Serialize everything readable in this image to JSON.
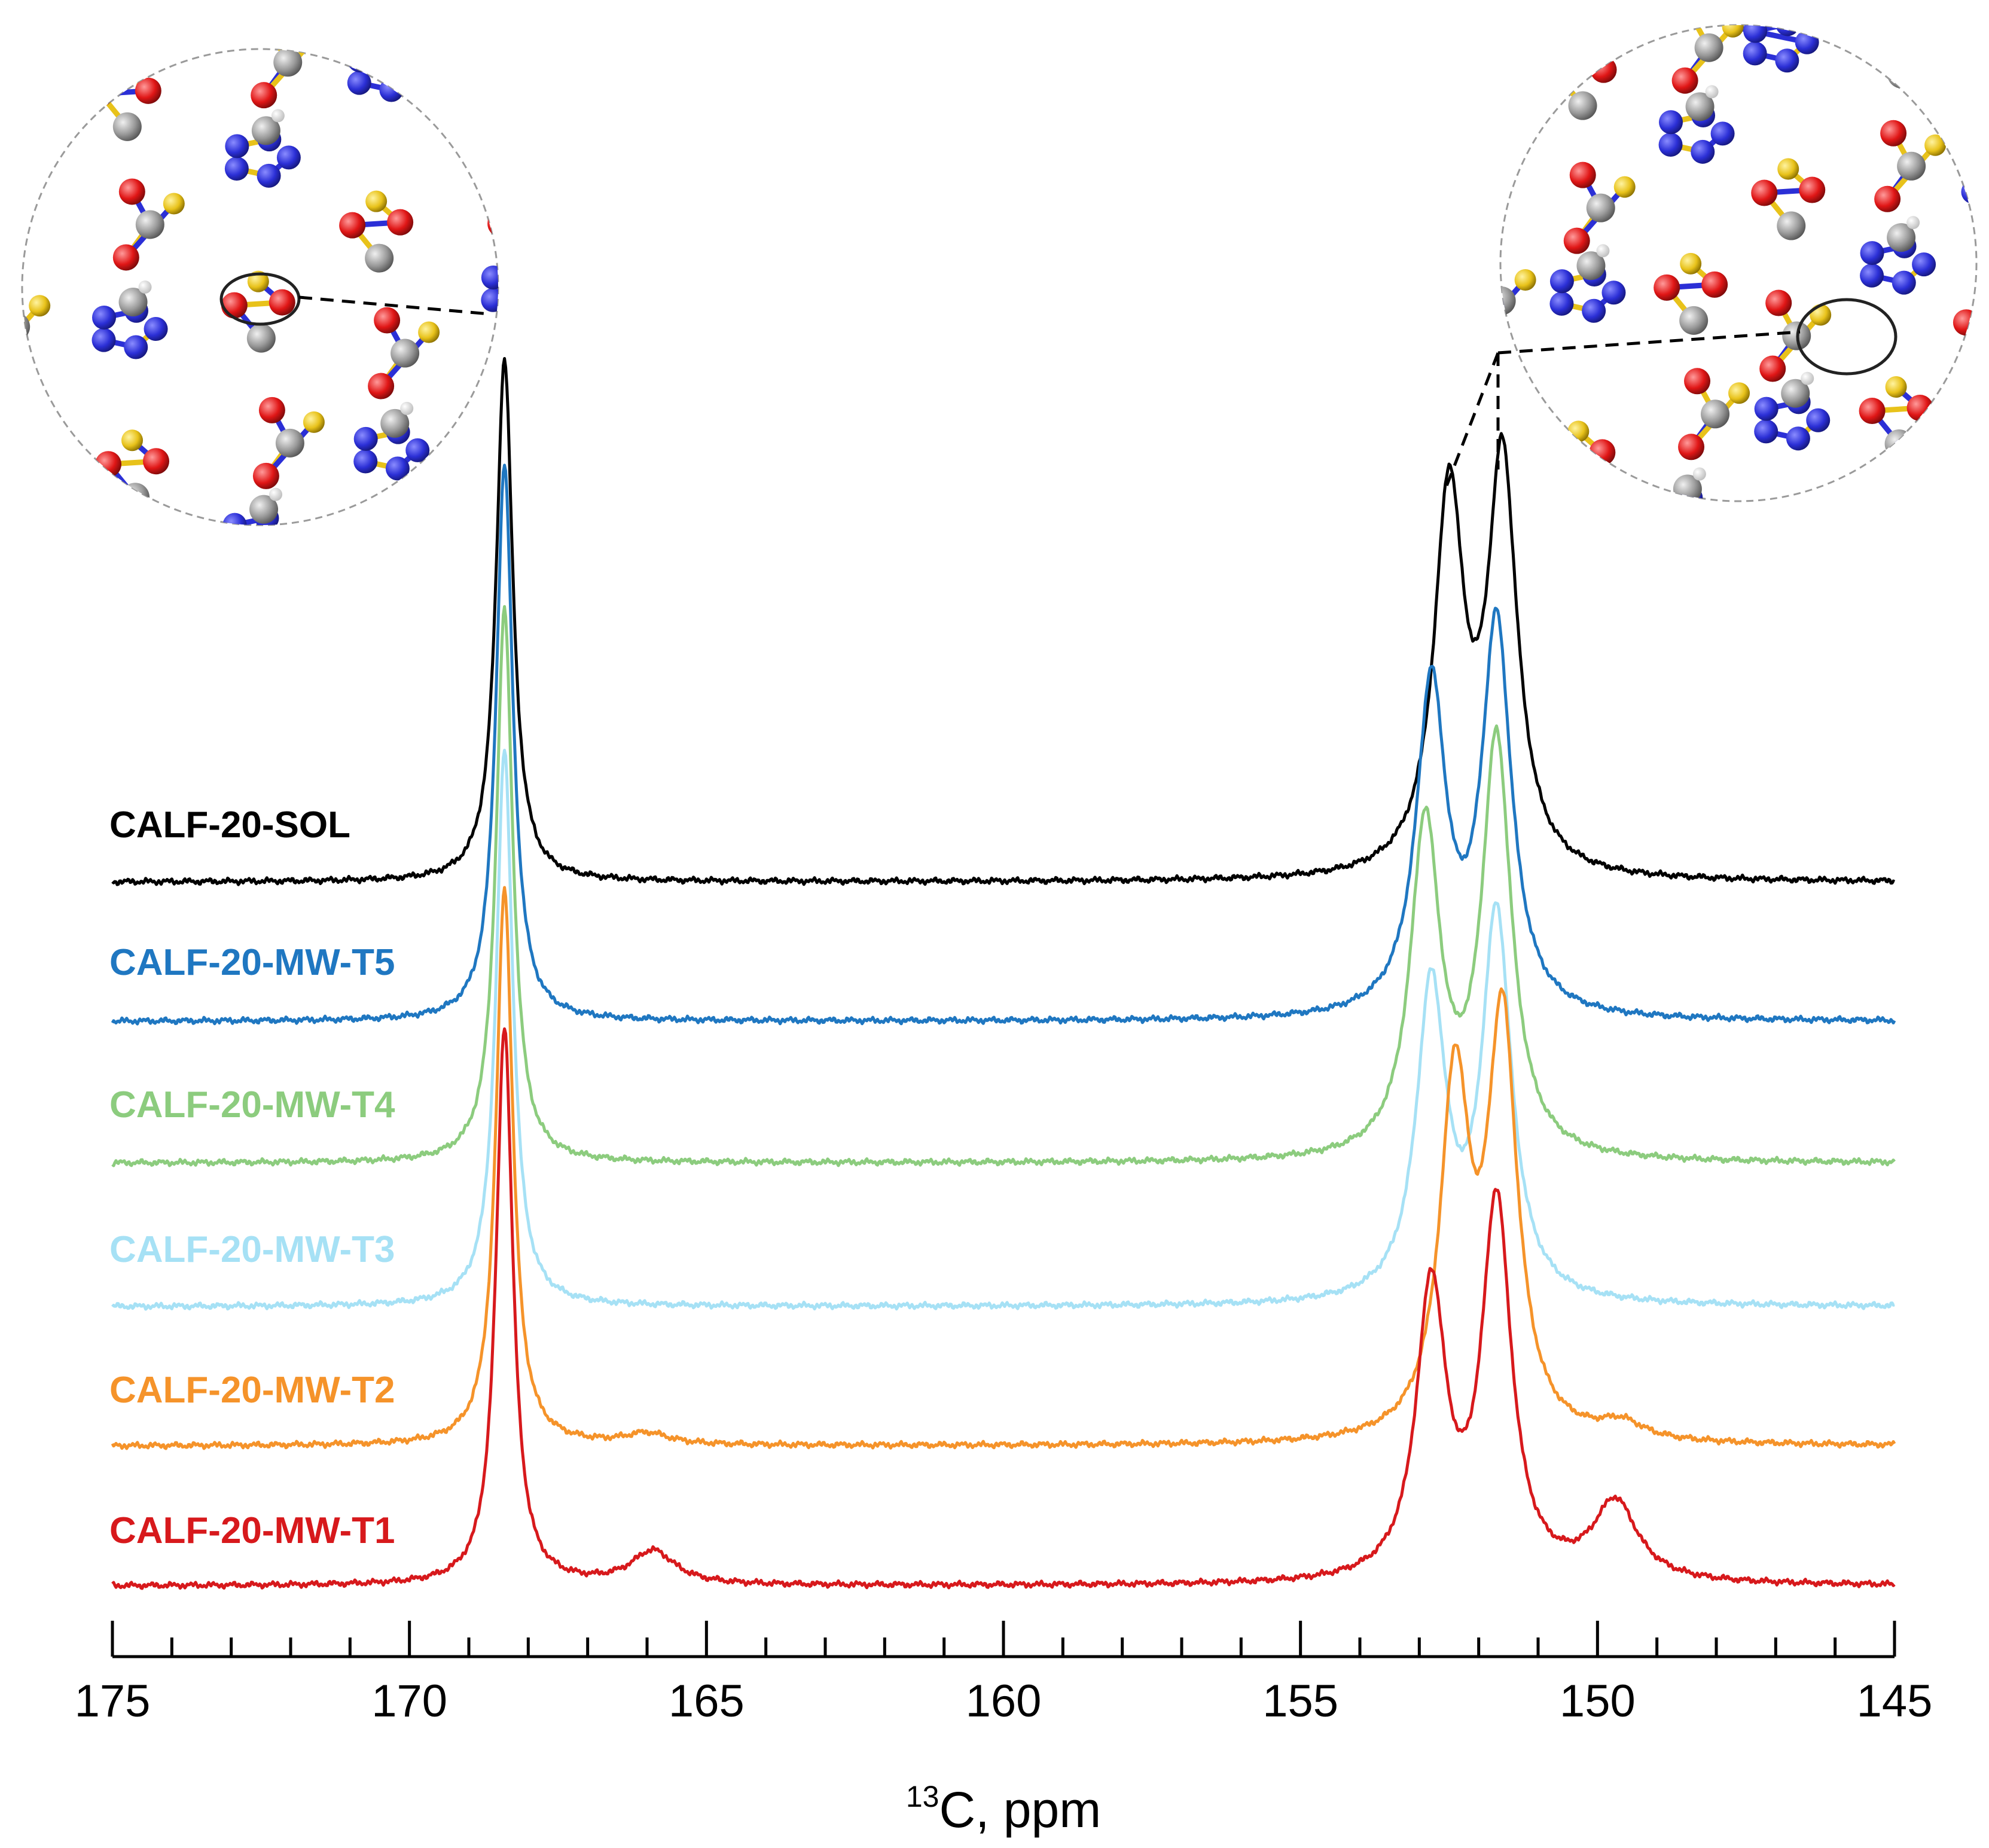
{
  "chart_data": {
    "type": "line",
    "title": "",
    "xlabel": "¹³C, ppm",
    "xlabel_parts": {
      "superscript": "13",
      "text": "C, ppm"
    },
    "ylabel": "",
    "xlim": [
      175,
      145
    ],
    "x_reversed": true,
    "x_ticks": [
      "175",
      "170",
      "165",
      "160",
      "155",
      "150",
      "145"
    ],
    "y_axis_shown": false,
    "grid": false,
    "legend": "inline labels at left of each trace",
    "series": [
      {
        "name": "CALF-20-SOL",
        "color": "#000000",
        "peaks": [
          {
            "ppm": 168.4,
            "height": 1.0
          },
          {
            "ppm": 152.5,
            "height": 0.72
          },
          {
            "ppm": 151.6,
            "height": 0.78
          }
        ]
      },
      {
        "name": "CALF-20-MW-T5",
        "color": "#1f77c1",
        "peaks": [
          {
            "ppm": 168.4,
            "height": 1.0
          },
          {
            "ppm": 152.8,
            "height": 0.59
          },
          {
            "ppm": 151.7,
            "height": 0.7
          }
        ]
      },
      {
        "name": "CALF-20-MW-T4",
        "color": "#8ccc7e",
        "peaks": [
          {
            "ppm": 168.4,
            "height": 1.0
          },
          {
            "ppm": 152.9,
            "height": 0.6
          },
          {
            "ppm": 151.7,
            "height": 0.75
          }
        ]
      },
      {
        "name": "CALF-20-MW-T3",
        "color": "#a6e1f5",
        "peaks": [
          {
            "ppm": 168.4,
            "height": 1.0
          },
          {
            "ppm": 152.8,
            "height": 0.56
          },
          {
            "ppm": 151.7,
            "height": 0.69
          }
        ]
      },
      {
        "name": "CALF-20-MW-T2",
        "color": "#f5932a",
        "peaks": [
          {
            "ppm": 168.4,
            "height": 1.0
          },
          {
            "ppm": 152.4,
            "height": 0.63
          },
          {
            "ppm": 151.6,
            "height": 0.74
          },
          {
            "ppm": 166.0,
            "height": 0.02
          },
          {
            "ppm": 149.6,
            "height": 0.03
          }
        ]
      },
      {
        "name": "CALF-20-MW-T1",
        "color": "#d7191c",
        "peaks": [
          {
            "ppm": 168.4,
            "height": 1.0
          },
          {
            "ppm": 152.8,
            "height": 0.52
          },
          {
            "ppm": 151.7,
            "height": 0.67
          },
          {
            "ppm": 165.9,
            "height": 0.06
          },
          {
            "ppm": 149.7,
            "height": 0.14
          }
        ]
      }
    ],
    "insets": [
      {
        "name": "framework-view-left",
        "points_to_ppm": 168.4
      },
      {
        "name": "framework-view-right",
        "points_to_ppm": [
          152.5,
          151.6
        ]
      }
    ]
  }
}
